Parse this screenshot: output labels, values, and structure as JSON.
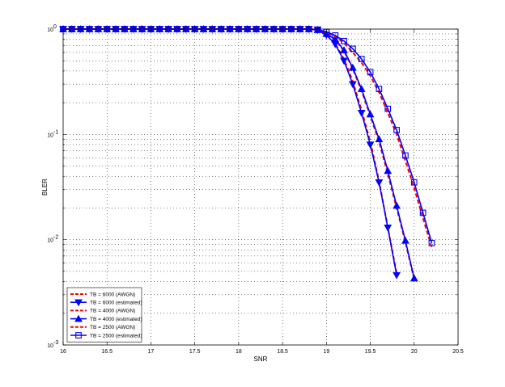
{
  "chart_data": {
    "type": "line",
    "title": "",
    "xlabel": "SNR",
    "ylabel": "BLER",
    "xlim": [
      16,
      20.5
    ],
    "ylim": [
      0.001,
      1
    ],
    "yscale": "log",
    "grid": true,
    "legend_position": "bottom-left",
    "x_ticks": [
      16,
      16.5,
      17,
      17.5,
      18,
      18.5,
      19,
      19.5,
      20,
      20.5
    ],
    "x_tick_labels": [
      "16",
      "16.5",
      "17",
      "17.5",
      "18",
      "18.5",
      "19",
      "19.5",
      "20",
      "20.5"
    ],
    "y_ticks": [
      0.001,
      0.01,
      0.1,
      1
    ],
    "y_tick_labels": [
      {
        "base": "10",
        "exp": "-3"
      },
      {
        "base": "10",
        "exp": "-2"
      },
      {
        "base": "10",
        "exp": "-1"
      },
      {
        "base": "10",
        "exp": "0"
      }
    ],
    "series": [
      {
        "name": "TB = 6000 (AWGN)",
        "color": "#ff0000",
        "style": "dashed",
        "marker": "none",
        "x": [
          16,
          16.1,
          16.2,
          16.3,
          16.4,
          16.5,
          16.6,
          16.7,
          16.8,
          16.9,
          17,
          17.1,
          17.2,
          17.3,
          17.4,
          17.5,
          17.6,
          17.7,
          17.8,
          17.9,
          18,
          18.1,
          18.2,
          18.3,
          18.4,
          18.5,
          18.6,
          18.7,
          18.8,
          18.9,
          19,
          19.1,
          19.2,
          19.3,
          19.4,
          19.5,
          19.6,
          19.7,
          19.8
        ],
        "y": [
          1,
          1,
          1,
          1,
          1,
          1,
          1,
          1,
          1,
          1,
          1,
          1,
          1,
          1,
          1,
          1,
          1,
          1,
          1,
          1,
          1,
          1,
          1,
          1,
          1,
          1,
          1,
          1,
          1,
          0.98,
          0.88,
          0.73,
          0.52,
          0.32,
          0.17,
          0.085,
          0.036,
          0.013,
          0.0048
        ]
      },
      {
        "name": "TB = 6000 (estimated)",
        "color": "#0000ff",
        "style": "solid",
        "marker": "triangle-down",
        "x": [
          16,
          16.1,
          16.2,
          16.3,
          16.4,
          16.5,
          16.6,
          16.7,
          16.8,
          16.9,
          17,
          17.1,
          17.2,
          17.3,
          17.4,
          17.5,
          17.6,
          17.7,
          17.8,
          17.9,
          18,
          18.1,
          18.2,
          18.3,
          18.4,
          18.5,
          18.6,
          18.7,
          18.8,
          18.9,
          19,
          19.1,
          19.2,
          19.3,
          19.4,
          19.5,
          19.6,
          19.7,
          19.8
        ],
        "y": [
          1,
          1,
          1,
          1,
          1,
          1,
          1,
          1,
          1,
          1,
          1,
          1,
          1,
          1,
          1,
          1,
          1,
          1,
          1,
          1,
          1,
          1,
          1,
          1,
          1,
          1,
          1,
          1,
          1,
          0.98,
          0.88,
          0.72,
          0.5,
          0.3,
          0.16,
          0.08,
          0.035,
          0.013,
          0.0046
        ]
      },
      {
        "name": "TB = 4000 (AWGN)",
        "color": "#ff0000",
        "style": "dashed",
        "marker": "none",
        "x": [
          16,
          16.1,
          16.2,
          16.3,
          16.4,
          16.5,
          16.6,
          16.7,
          16.8,
          16.9,
          17,
          17.1,
          17.2,
          17.3,
          17.4,
          17.5,
          17.6,
          17.7,
          17.8,
          17.9,
          18,
          18.1,
          18.2,
          18.3,
          18.4,
          18.5,
          18.6,
          18.7,
          18.8,
          18.9,
          19,
          19.1,
          19.2,
          19.3,
          19.4,
          19.5,
          19.6,
          19.7,
          19.8,
          19.9,
          20
        ],
        "y": [
          1,
          1,
          1,
          1,
          1,
          1,
          1,
          1,
          1,
          1,
          1,
          1,
          1,
          1,
          1,
          1,
          1,
          1,
          1,
          1,
          1,
          1,
          1,
          1,
          1,
          1,
          1,
          1,
          1,
          0.98,
          0.9,
          0.8,
          0.62,
          0.42,
          0.26,
          0.15,
          0.085,
          0.042,
          0.02,
          0.0095,
          0.0042
        ]
      },
      {
        "name": "TB = 4000 (estimated)",
        "color": "#0000ff",
        "style": "solid",
        "marker": "triangle-up",
        "x": [
          16,
          16.1,
          16.2,
          16.3,
          16.4,
          16.5,
          16.6,
          16.7,
          16.8,
          16.9,
          17,
          17.1,
          17.2,
          17.3,
          17.4,
          17.5,
          17.6,
          17.7,
          17.8,
          17.9,
          18,
          18.1,
          18.2,
          18.3,
          18.4,
          18.5,
          18.6,
          18.7,
          18.8,
          18.9,
          19,
          19.1,
          19.2,
          19.3,
          19.4,
          19.5,
          19.6,
          19.7,
          19.8,
          19.9,
          20
        ],
        "y": [
          1,
          1,
          1,
          1,
          1,
          1,
          1,
          1,
          1,
          1,
          1,
          1,
          1,
          1,
          1,
          1,
          1,
          1,
          1,
          1,
          1,
          1,
          1,
          1,
          1,
          1,
          1,
          1,
          1,
          0.98,
          0.9,
          0.8,
          0.63,
          0.43,
          0.27,
          0.155,
          0.09,
          0.045,
          0.021,
          0.0098,
          0.0043
        ]
      },
      {
        "name": "TB = 2500 (AWGN)",
        "color": "#ff0000",
        "style": "dashed",
        "marker": "none",
        "x": [
          16,
          16.1,
          16.2,
          16.3,
          16.4,
          16.5,
          16.6,
          16.7,
          16.8,
          16.9,
          17,
          17.1,
          17.2,
          17.3,
          17.4,
          17.5,
          17.6,
          17.7,
          17.8,
          17.9,
          18,
          18.1,
          18.2,
          18.3,
          18.4,
          18.5,
          18.6,
          18.7,
          18.8,
          18.9,
          19,
          19.1,
          19.2,
          19.3,
          19.4,
          19.5,
          19.6,
          19.7,
          19.8,
          19.9,
          20,
          20.1,
          20.2
        ],
        "y": [
          1,
          1,
          1,
          1,
          1,
          1,
          1,
          1,
          1,
          1,
          1,
          1,
          1,
          1,
          1,
          1,
          1,
          1,
          1,
          1,
          1,
          1,
          1,
          1,
          1,
          1,
          1,
          1,
          1,
          0.99,
          0.93,
          0.85,
          0.74,
          0.6,
          0.48,
          0.36,
          0.25,
          0.16,
          0.1,
          0.056,
          0.031,
          0.016,
          0.0085
        ]
      },
      {
        "name": "TB = 2500 (estimated)",
        "color": "#0000ff",
        "style": "solid",
        "marker": "square",
        "x": [
          16,
          16.1,
          16.2,
          16.3,
          16.4,
          16.5,
          16.6,
          16.7,
          16.8,
          16.9,
          17,
          17.1,
          17.2,
          17.3,
          17.4,
          17.5,
          17.6,
          17.7,
          17.8,
          17.9,
          18,
          18.1,
          18.2,
          18.3,
          18.4,
          18.5,
          18.6,
          18.7,
          18.8,
          18.9,
          19,
          19.1,
          19.2,
          19.3,
          19.4,
          19.5,
          19.6,
          19.7,
          19.8,
          19.9,
          20,
          20.1,
          20.2
        ],
        "y": [
          1,
          1,
          1,
          1,
          1,
          1,
          1,
          1,
          1,
          1,
          1,
          1,
          1,
          1,
          1,
          1,
          1,
          1,
          1,
          1,
          1,
          1,
          1,
          1,
          1,
          1,
          1,
          1,
          1,
          0.99,
          0.94,
          0.87,
          0.77,
          0.65,
          0.52,
          0.39,
          0.27,
          0.175,
          0.11,
          0.063,
          0.035,
          0.018,
          0.0093
        ]
      }
    ]
  }
}
